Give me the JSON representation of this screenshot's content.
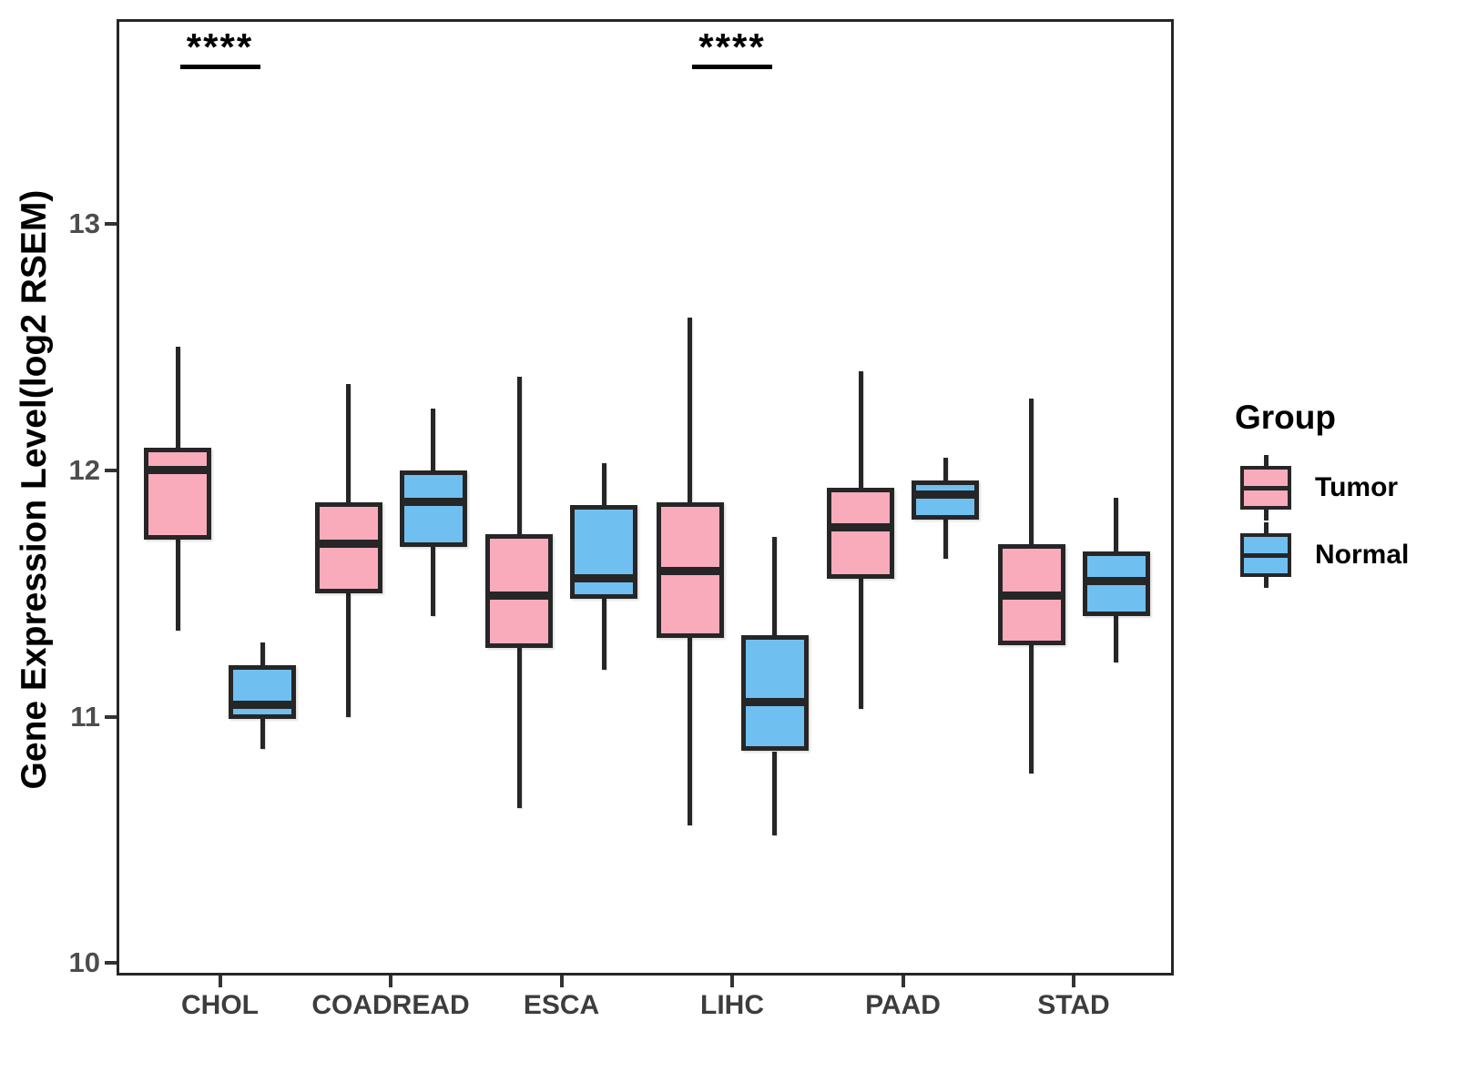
{
  "chart_data": {
    "type": "boxplot",
    "title": "",
    "xlabel": "",
    "ylabel": "Gene Expression Level(log2 RSEM)",
    "ylim": [
      9.95,
      13.83
    ],
    "yticks": [
      10,
      11,
      12,
      13
    ],
    "grid": false,
    "categories": [
      "CHOL",
      "COADREAD",
      "ESCA",
      "LIHC",
      "PAAD",
      "STAD"
    ],
    "legend": {
      "title": "Group",
      "position": "right",
      "entries": [
        {
          "label": "Tumor",
          "color": "#F9ABBC"
        },
        {
          "label": "Normal",
          "color": "#6FBFF0"
        }
      ]
    },
    "series": [
      {
        "name": "Tumor",
        "color": "#F9ABBC",
        "boxes": [
          {
            "category": "CHOL",
            "whisker_low": 11.35,
            "q1": 11.72,
            "median": 12.0,
            "q3": 12.09,
            "whisker_high": 12.5
          },
          {
            "category": "COADREAD",
            "whisker_low": 11.0,
            "q1": 11.5,
            "median": 11.7,
            "q3": 11.87,
            "whisker_high": 12.35
          },
          {
            "category": "ESCA",
            "whisker_low": 10.63,
            "q1": 11.28,
            "median": 11.49,
            "q3": 11.74,
            "whisker_high": 12.38
          },
          {
            "category": "LIHC",
            "whisker_low": 10.56,
            "q1": 11.32,
            "median": 11.59,
            "q3": 11.87,
            "whisker_high": 12.62
          },
          {
            "category": "PAAD",
            "whisker_low": 11.03,
            "q1": 11.56,
            "median": 11.77,
            "q3": 11.93,
            "whisker_high": 12.4
          },
          {
            "category": "STAD",
            "whisker_low": 10.77,
            "q1": 11.29,
            "median": 11.49,
            "q3": 11.7,
            "whisker_high": 12.29
          }
        ]
      },
      {
        "name": "Normal",
        "color": "#6FBFF0",
        "boxes": [
          {
            "category": "CHOL",
            "whisker_low": 10.87,
            "q1": 10.99,
            "median": 11.05,
            "q3": 11.21,
            "whisker_high": 11.3
          },
          {
            "category": "COADREAD",
            "whisker_low": 11.41,
            "q1": 11.69,
            "median": 11.87,
            "q3": 12.0,
            "whisker_high": 12.25
          },
          {
            "category": "ESCA",
            "whisker_low": 11.19,
            "q1": 11.48,
            "median": 11.56,
            "q3": 11.86,
            "whisker_high": 12.03
          },
          {
            "category": "LIHC",
            "whisker_low": 10.52,
            "q1": 10.86,
            "median": 11.06,
            "q3": 11.33,
            "whisker_high": 11.73
          },
          {
            "category": "PAAD",
            "whisker_low": 11.64,
            "q1": 11.8,
            "median": 11.9,
            "q3": 11.96,
            "whisker_high": 12.05
          },
          {
            "category": "STAD",
            "whisker_low": 11.22,
            "q1": 11.41,
            "median": 11.55,
            "q3": 11.67,
            "whisker_high": 11.89
          }
        ]
      }
    ],
    "annotations": [
      {
        "category": "CHOL",
        "label": "****"
      },
      {
        "category": "LIHC",
        "label": "****"
      }
    ]
  }
}
